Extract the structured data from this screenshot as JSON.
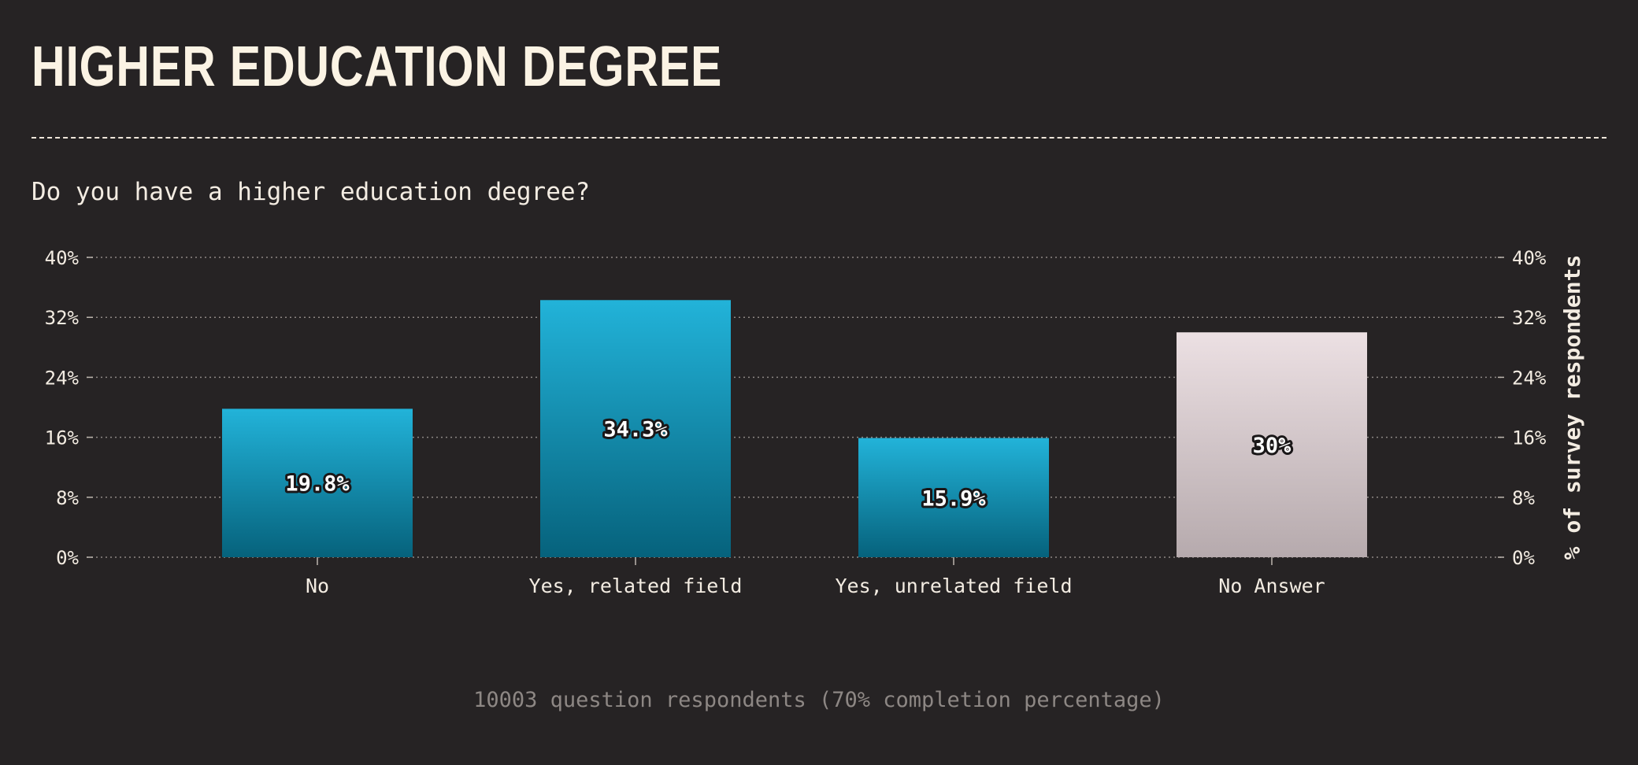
{
  "header": {
    "title": "HIGHER EDUCATION DEGREE",
    "question": "Do you have a higher education degree?"
  },
  "footer": {
    "note": "10003 question respondents (70% completion percentage)"
  },
  "colors": {
    "background": "#262324",
    "bar_primary_top": "#22b3d9",
    "bar_primary_bottom": "#06627c",
    "bar_neutral_top": "#ece0e3",
    "bar_neutral_bottom": "#b6aaad",
    "text": "#f3ece2",
    "muted_text": "#8d8784"
  },
  "chart_data": {
    "type": "bar",
    "categories": [
      "No",
      "Yes, related field",
      "Yes, unrelated field",
      "No Answer"
    ],
    "values": [
      19.8,
      34.3,
      15.9,
      30
    ],
    "value_labels": [
      "19.8%",
      "34.3%",
      "15.9%",
      "30%"
    ],
    "highlight": [
      "primary",
      "primary",
      "primary",
      "neutral"
    ],
    "ylim": [
      0,
      40
    ],
    "yticks": [
      0,
      8,
      16,
      24,
      32,
      40
    ],
    "ytick_labels": [
      "0%",
      "8%",
      "16%",
      "24%",
      "32%",
      "40%"
    ],
    "ylabel": "% of survey respondents",
    "xlabel": "",
    "grid": true,
    "y_axis_both_sides": true
  }
}
